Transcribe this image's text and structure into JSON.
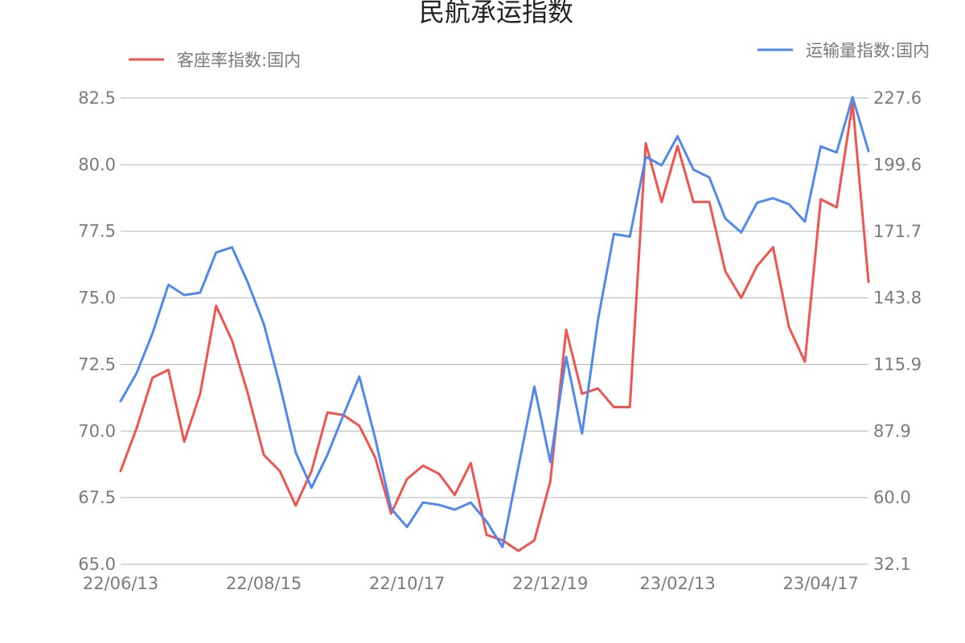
{
  "chart_data": {
    "type": "line",
    "title": "民航承运指数",
    "x": [
      "22/06/13",
      "22/06/20",
      "22/06/27",
      "22/07/04",
      "22/07/11",
      "22/07/18",
      "22/07/25",
      "22/08/01",
      "22/08/08",
      "22/08/15",
      "22/08/22",
      "22/08/29",
      "22/09/05",
      "22/09/12",
      "22/09/19",
      "22/09/26",
      "22/10/03",
      "22/10/10",
      "22/10/17",
      "22/10/24",
      "22/10/31",
      "22/11/07",
      "22/11/14",
      "22/11/21",
      "22/11/28",
      "22/12/05",
      "22/12/12",
      "22/12/19",
      "22/12/26",
      "23/01/02",
      "23/01/09",
      "23/01/16",
      "23/01/23",
      "23/01/30",
      "23/02/06",
      "23/02/13",
      "23/02/20",
      "23/02/27",
      "23/03/06",
      "23/03/13",
      "23/03/20",
      "23/03/27",
      "23/04/03",
      "23/04/10",
      "23/04/17",
      "23/04/24",
      "23/05/01",
      "23/05/08"
    ],
    "x_tick_labels": [
      "22/06/13",
      "22/08/15",
      "22/10/17",
      "22/12/19",
      "23/02/13",
      "23/04/17"
    ],
    "y_left": {
      "ylim": [
        65.0,
        82.5
      ],
      "ticks": [
        "65.0",
        "67.5",
        "70.0",
        "72.5",
        "75.0",
        "77.5",
        "80.0",
        "82.5"
      ]
    },
    "y_right": {
      "ylim": [
        32.1,
        227.6
      ],
      "ticks": [
        "32.1",
        "60.0",
        "87.9",
        "115.9",
        "143.8",
        "171.7",
        "199.6",
        "227.6"
      ]
    },
    "grid": true,
    "series": [
      {
        "name": "客座率指数:国内",
        "axis": "left",
        "color": "#f0544f",
        "legend_position": "top-left",
        "values": [
          68.5,
          70.1,
          72.0,
          72.3,
          69.6,
          71.4,
          74.7,
          73.4,
          71.4,
          69.1,
          68.5,
          67.2,
          68.5,
          70.7,
          70.6,
          70.2,
          69.0,
          66.9,
          68.2,
          68.7,
          68.4,
          67.6,
          68.8,
          66.1,
          65.9,
          65.5,
          65.9,
          68.1,
          73.8,
          71.4,
          71.6,
          70.9,
          70.9,
          80.8,
          78.6,
          80.7,
          78.6,
          78.6,
          76.0,
          75.0,
          76.2,
          76.9,
          73.9,
          72.6,
          78.7,
          78.4,
          82.3,
          75.6
        ]
      },
      {
        "name": "运输量指数:国内",
        "axis": "right",
        "color": "#4f88ee",
        "legend_position": "top-right",
        "values": [
          100.5,
          112.2,
          128.9,
          149.3,
          145.0,
          146.0,
          162.8,
          165.0,
          150.1,
          132.8,
          107.4,
          79.0,
          64.2,
          78.0,
          94.6,
          110.8,
          84.9,
          55.4,
          47.7,
          58.0,
          57.0,
          55.0,
          58.0,
          50.0,
          39.3,
          73.0,
          106.6,
          75.0,
          119.1,
          86.9,
          134.6,
          170.6,
          169.5,
          203.0,
          199.4,
          211.6,
          197.6,
          194.3,
          177.1,
          171.2,
          183.7,
          185.6,
          183.1,
          175.8,
          207.3,
          204.8,
          228.0,
          205.4
        ]
      }
    ]
  }
}
